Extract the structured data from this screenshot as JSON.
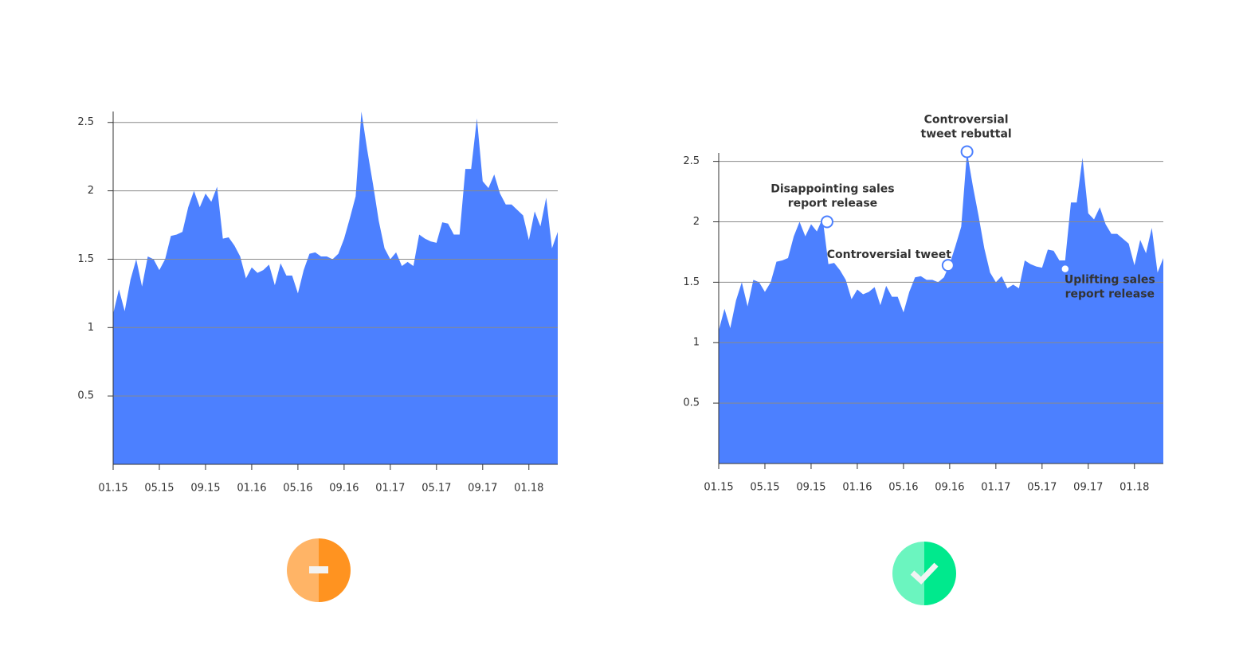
{
  "chart_data": [
    {
      "type": "area",
      "color": "#4c80ff",
      "x": [
        0,
        0.5,
        1,
        1.5,
        2,
        2.5,
        3,
        3.5,
        4,
        4.5,
        5,
        5.5,
        6,
        6.5,
        7,
        7.5,
        8,
        8.5,
        9,
        9.5,
        10,
        10.5,
        11,
        11.5,
        12,
        12.5,
        13,
        13.5,
        14,
        14.5,
        15,
        15.5,
        16,
        16.5,
        17,
        17.5,
        18,
        18.5,
        19,
        19.5,
        20,
        20.5,
        21,
        21.5,
        22,
        22.5,
        23,
        23.5,
        24,
        24.5,
        25,
        25.5,
        26,
        26.5,
        27,
        27.5,
        28,
        28.5,
        29,
        29.5,
        30,
        30.5,
        31,
        31.5,
        32,
        32.5,
        33,
        33.5,
        34,
        34.5,
        35,
        35.5,
        36,
        36.5,
        37,
        37.5,
        38,
        38.5
      ],
      "values": [
        1.1,
        1.28,
        1.12,
        1.35,
        1.5,
        1.3,
        1.52,
        1.5,
        1.42,
        1.5,
        1.67,
        1.68,
        1.7,
        1.88,
        2.0,
        1.88,
        1.98,
        1.92,
        2.03,
        1.65,
        1.66,
        1.6,
        1.52,
        1.36,
        1.44,
        1.4,
        1.42,
        1.46,
        1.31,
        1.47,
        1.38,
        1.38,
        1.25,
        1.42,
        1.54,
        1.55,
        1.52,
        1.52,
        1.5,
        1.54,
        1.65,
        1.8,
        1.96,
        2.58,
        2.3,
        2.05,
        1.78,
        1.58,
        1.5,
        1.55,
        1.45,
        1.48,
        1.45,
        1.68,
        1.65,
        1.63,
        1.62,
        1.77,
        1.76,
        1.68,
        1.68,
        2.16,
        2.16,
        2.53,
        2.07,
        2.02,
        2.12,
        1.98,
        1.9,
        1.9,
        1.86,
        1.82,
        1.64,
        1.85,
        1.74,
        1.95,
        1.58,
        1.7
      ],
      "xlim": [
        0,
        38.5
      ],
      "ylim": [
        0,
        2.58
      ],
      "xticks": [
        {
          "value": 0,
          "label": "01.15"
        },
        {
          "value": 4,
          "label": "05.15"
        },
        {
          "value": 8,
          "label": "09.15"
        },
        {
          "value": 12,
          "label": "01.16"
        },
        {
          "value": 16,
          "label": "05.16"
        },
        {
          "value": 20,
          "label": "09.16"
        },
        {
          "value": 24,
          "label": "01.17"
        },
        {
          "value": 28,
          "label": "05.17"
        },
        {
          "value": 32,
          "label": "09.17"
        },
        {
          "value": 36,
          "label": "01.18"
        }
      ],
      "yticks": [
        0.5,
        1,
        1.5,
        2,
        2.5
      ],
      "grid": true
    },
    {
      "type": "area",
      "color": "#4c80ff",
      "x": [
        0,
        0.5,
        1,
        1.5,
        2,
        2.5,
        3,
        3.5,
        4,
        4.5,
        5,
        5.5,
        6,
        6.5,
        7,
        7.5,
        8,
        8.5,
        9,
        9.5,
        10,
        10.5,
        11,
        11.5,
        12,
        12.5,
        13,
        13.5,
        14,
        14.5,
        15,
        15.5,
        16,
        16.5,
        17,
        17.5,
        18,
        18.5,
        19,
        19.5,
        20,
        20.5,
        21,
        21.5,
        22,
        22.5,
        23,
        23.5,
        24,
        24.5,
        25,
        25.5,
        26,
        26.5,
        27,
        27.5,
        28,
        28.5,
        29,
        29.5,
        30,
        30.5,
        31,
        31.5,
        32,
        32.5,
        33,
        33.5,
        34,
        34.5,
        35,
        35.5,
        36,
        36.5,
        37,
        37.5,
        38,
        38.5
      ],
      "values": [
        1.1,
        1.28,
        1.12,
        1.35,
        1.5,
        1.3,
        1.52,
        1.5,
        1.42,
        1.5,
        1.67,
        1.68,
        1.7,
        1.88,
        2.0,
        1.88,
        1.98,
        1.92,
        2.03,
        1.65,
        1.66,
        1.6,
        1.52,
        1.36,
        1.44,
        1.4,
        1.42,
        1.46,
        1.31,
        1.47,
        1.38,
        1.38,
        1.25,
        1.42,
        1.54,
        1.55,
        1.52,
        1.52,
        1.5,
        1.54,
        1.65,
        1.8,
        1.96,
        2.58,
        2.3,
        2.05,
        1.78,
        1.58,
        1.5,
        1.55,
        1.45,
        1.48,
        1.45,
        1.68,
        1.65,
        1.63,
        1.62,
        1.77,
        1.76,
        1.68,
        1.68,
        2.16,
        2.16,
        2.53,
        2.07,
        2.02,
        2.12,
        1.98,
        1.9,
        1.9,
        1.86,
        1.82,
        1.64,
        1.85,
        1.74,
        1.95,
        1.58,
        1.7
      ],
      "xlim": [
        0,
        38.5
      ],
      "ylim": [
        0,
        2.57
      ],
      "xticks": [
        {
          "value": 0,
          "label": "01.15"
        },
        {
          "value": 4,
          "label": "05.15"
        },
        {
          "value": 8,
          "label": "09.15"
        },
        {
          "value": 12,
          "label": "01.16"
        },
        {
          "value": 16,
          "label": "05.16"
        },
        {
          "value": 20,
          "label": "09.16"
        },
        {
          "value": 24,
          "label": "01.17"
        },
        {
          "value": 28,
          "label": "05.17"
        },
        {
          "value": 32,
          "label": "09.17"
        },
        {
          "value": 36,
          "label": "01.18"
        }
      ],
      "yticks": [
        0.5,
        1,
        1.5,
        2,
        2.5
      ],
      "grid": true,
      "annotations": [
        {
          "text": [
            "Disappointing sales",
            "report release"
          ],
          "x": 9.38,
          "y": 2.0
        },
        {
          "text": [
            "Controversial tweet"
          ],
          "x": 19.86,
          "y": 1.64
        },
        {
          "text": [
            "Controversial",
            "tweet rebuttal"
          ],
          "x": 21.5,
          "y": 2.58
        },
        {
          "text": [
            "Uplifting sales",
            "report release"
          ],
          "x": 30.0,
          "y": 1.61
        }
      ]
    }
  ]
}
